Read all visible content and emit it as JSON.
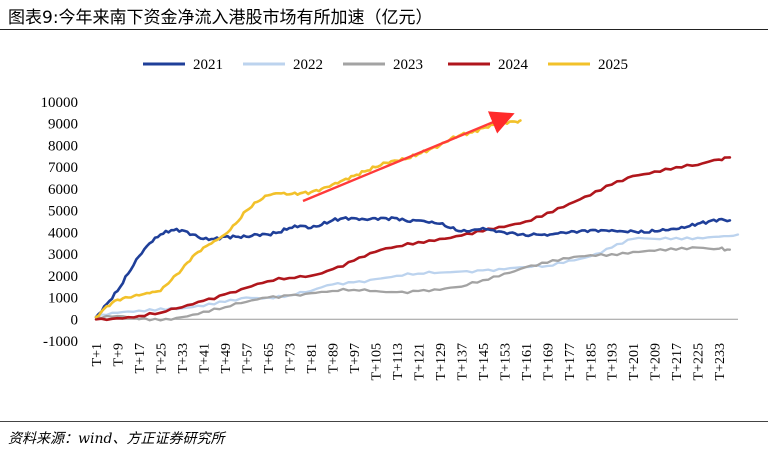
{
  "header": {
    "title": "图表9:今年来南下资金净流入港股市场有所加速（亿元）"
  },
  "footer": {
    "source": "资料来源：wind、方正证券研究所"
  },
  "chart_data": {
    "type": "line",
    "title": "图表9:今年来南下资金净流入港股市场有所加速（亿元）",
    "xlabel": "",
    "ylabel": "",
    "ylim": [
      -1000,
      10000
    ],
    "yticks": [
      -1000,
      0,
      1000,
      2000,
      3000,
      4000,
      5000,
      6000,
      7000,
      8000,
      9000,
      10000
    ],
    "xticks": [
      "T+1",
      "T+9",
      "T+17",
      "T+25",
      "T+33",
      "T+41",
      "T+49",
      "T+57",
      "T+65",
      "T+73",
      "T+81",
      "T+89",
      "T+97",
      "T+105",
      "T+113",
      "T+121",
      "T+129",
      "T+137",
      "T+145",
      "T+153",
      "T+161",
      "T+169",
      "T+177",
      "T+185",
      "T+193",
      "T+201",
      "T+209",
      "T+217",
      "T+225",
      "T+233"
    ],
    "xlim": [
      1,
      240
    ],
    "grid": false,
    "legend": "top",
    "annotation": "red arrow pointing up-right along the 2025 series",
    "series": [
      {
        "name": "2021",
        "color": "#1f3f99",
        "x": [
          1,
          5,
          9,
          13,
          17,
          21,
          25,
          29,
          33,
          37,
          41,
          45,
          49,
          53,
          57,
          61,
          65,
          69,
          73,
          77,
          81,
          85,
          89,
          93,
          97,
          101,
          105,
          109,
          113,
          117,
          121,
          125,
          129,
          133,
          137,
          141,
          145,
          149,
          153,
          157,
          161,
          165,
          169,
          173,
          177,
          181,
          185,
          189,
          193,
          197,
          201,
          205,
          209,
          213,
          217,
          221,
          225,
          229,
          233,
          237
        ],
        "y": [
          100,
          700,
          1300,
          2100,
          2900,
          3500,
          3900,
          4100,
          4100,
          3900,
          3700,
          3700,
          3800,
          3800,
          3800,
          3900,
          3900,
          4000,
          4200,
          4300,
          4200,
          4350,
          4550,
          4650,
          4650,
          4600,
          4650,
          4650,
          4650,
          4500,
          4550,
          4450,
          4400,
          4200,
          4050,
          4100,
          4200,
          4100,
          4000,
          3950,
          3850,
          3900,
          3850,
          3950,
          4000,
          4050,
          4100,
          4100,
          4100,
          4050,
          4050,
          4000,
          4050,
          4100,
          4150,
          4250,
          4400,
          4500,
          4600,
          4550
        ]
      },
      {
        "name": "2022",
        "color": "#bcd3ee",
        "x": [
          1,
          9,
          17,
          25,
          33,
          41,
          49,
          57,
          65,
          73,
          81,
          89,
          97,
          105,
          113,
          121,
          129,
          137,
          145,
          153,
          161,
          169,
          177,
          185,
          193,
          201,
          209,
          217,
          225,
          233,
          240
        ],
        "y": [
          100,
          300,
          400,
          500,
          500,
          600,
          800,
          1000,
          1000,
          1100,
          1300,
          1600,
          1700,
          1850,
          2000,
          2100,
          2150,
          2200,
          2250,
          2300,
          2400,
          2450,
          2700,
          2900,
          3300,
          3700,
          3700,
          3750,
          3750,
          3800,
          3900
        ]
      },
      {
        "name": "2023",
        "color": "#a3a3a3",
        "x": [
          1,
          9,
          17,
          25,
          33,
          41,
          49,
          57,
          65,
          73,
          81,
          89,
          97,
          105,
          113,
          121,
          129,
          137,
          145,
          153,
          161,
          169,
          177,
          185,
          193,
          201,
          209,
          217,
          225,
          233,
          237
        ],
        "y": [
          100,
          150,
          0,
          -50,
          100,
          350,
          550,
          800,
          1000,
          1100,
          1200,
          1300,
          1350,
          1300,
          1250,
          1300,
          1350,
          1500,
          1800,
          2100,
          2400,
          2600,
          2800,
          2950,
          3000,
          3100,
          3150,
          3200,
          3300,
          3250,
          3200
        ]
      },
      {
        "name": "2024",
        "color": "#b0161c",
        "x": [
          1,
          9,
          17,
          25,
          33,
          41,
          49,
          57,
          65,
          73,
          81,
          89,
          97,
          105,
          113,
          121,
          129,
          137,
          145,
          153,
          161,
          169,
          177,
          185,
          193,
          201,
          209,
          217,
          225,
          233,
          237
        ],
        "y": [
          0,
          50,
          150,
          300,
          550,
          850,
          1150,
          1450,
          1750,
          1900,
          2000,
          2300,
          2700,
          3100,
          3350,
          3550,
          3700,
          3850,
          4050,
          4250,
          4500,
          4900,
          5300,
          5700,
          6200,
          6600,
          6800,
          7000,
          7100,
          7350,
          7450
        ]
      },
      {
        "name": "2025",
        "color": "#f2c12a",
        "x": [
          1,
          5,
          9,
          13,
          17,
          21,
          25,
          29,
          33,
          37,
          41,
          45,
          49,
          53,
          57,
          61,
          65,
          69,
          73,
          77,
          81,
          85,
          89,
          93,
          97,
          101,
          105,
          109,
          113,
          117,
          121,
          125,
          129,
          133,
          137,
          141,
          145,
          149,
          153,
          157,
          159
        ],
        "y": [
          100,
          600,
          900,
          1000,
          1100,
          1200,
          1300,
          1800,
          2300,
          2900,
          3300,
          3600,
          3900,
          4400,
          5000,
          5400,
          5700,
          5800,
          5750,
          5800,
          5850,
          6000,
          6200,
          6400,
          6600,
          6800,
          7000,
          7200,
          7300,
          7400,
          7600,
          7800,
          8000,
          8300,
          8500,
          8600,
          8800,
          8950,
          9050,
          9100,
          9150
        ]
      }
    ]
  }
}
